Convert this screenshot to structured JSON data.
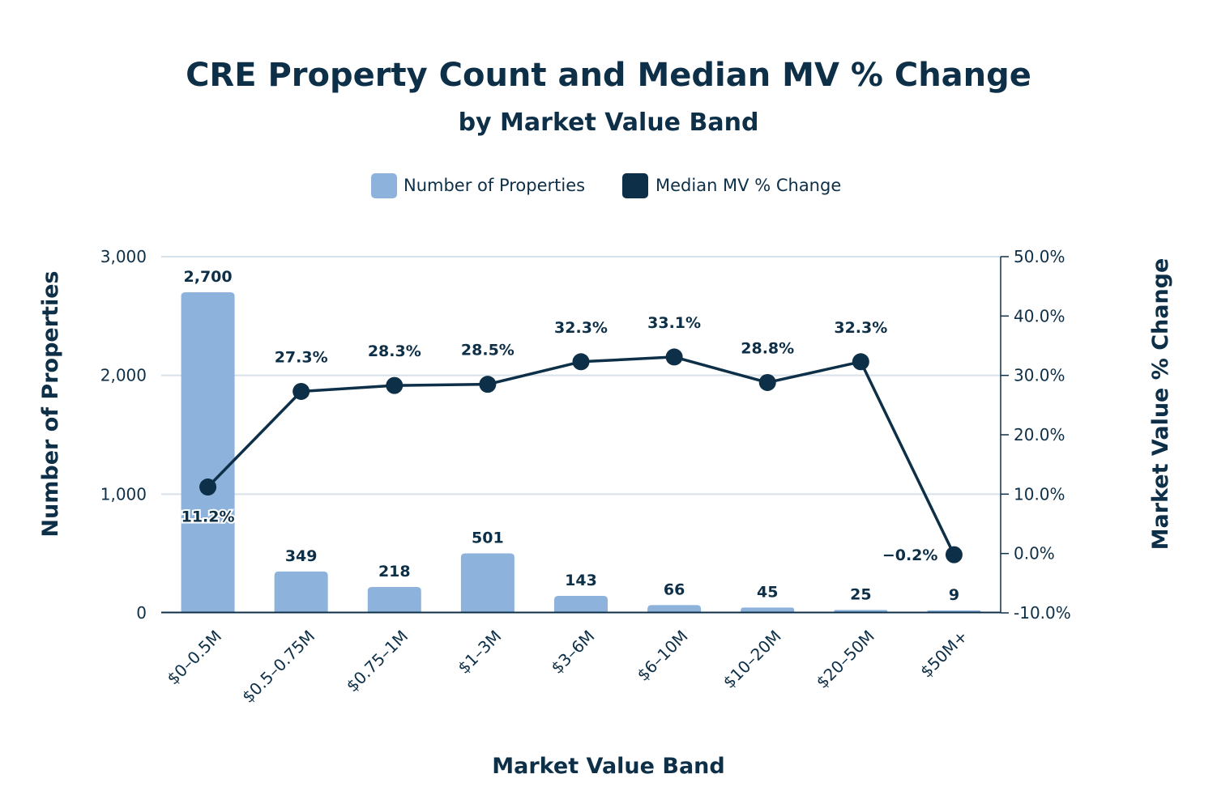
{
  "chart_data": {
    "type": "bar",
    "title": "CRE Property Count and Median MV % Change",
    "subtitle": "by Market Value Band",
    "xlabel": "Market Value Band",
    "ylabel": "Number of Properties",
    "y2label": "Market Value % Change",
    "categories": [
      "$0–0.5M",
      "$0.5–0.75M",
      "$0.75–1M",
      "$1–3M",
      "$3–6M",
      "$6–10M",
      "$10–20M",
      "$20–50M",
      "$50M+"
    ],
    "series": [
      {
        "name": "Number of Properties",
        "type": "bar",
        "axis": "left",
        "values": [
          2700,
          349,
          218,
          501,
          143,
          66,
          45,
          25,
          9
        ],
        "labels": [
          "2,700",
          "349",
          "218",
          "501",
          "143",
          "66",
          "45",
          "25",
          "9"
        ]
      },
      {
        "name": "Median MV % Change",
        "type": "line",
        "axis": "right",
        "values": [
          11.2,
          27.3,
          28.3,
          28.5,
          32.3,
          33.1,
          28.8,
          32.3,
          -0.2
        ],
        "labels": [
          "11.2%",
          "27.3%",
          "28.3%",
          "28.5%",
          "32.3%",
          "33.1%",
          "28.8%",
          "32.3%",
          "−0.2%"
        ]
      }
    ],
    "ylim": [
      0,
      3000
    ],
    "y2lim": [
      -10,
      50
    ],
    "yticks": [
      0,
      1000,
      2000,
      3000
    ],
    "ytick_labels": [
      "0",
      "1,000",
      "2,000",
      "3,000"
    ],
    "y2ticks": [
      -10,
      0,
      10,
      20,
      30,
      40,
      50
    ],
    "y2tick_labels": [
      "-10.0%",
      "0.0%",
      "10.0%",
      "20.0%",
      "30.0%",
      "40.0%",
      "50.0%"
    ],
    "grid": true,
    "legend_position": "top-center",
    "colors": {
      "bar": "#8db3dc",
      "line": "#0d2f47",
      "text": "#0d2f47",
      "grid": "#d6e1ea"
    }
  }
}
